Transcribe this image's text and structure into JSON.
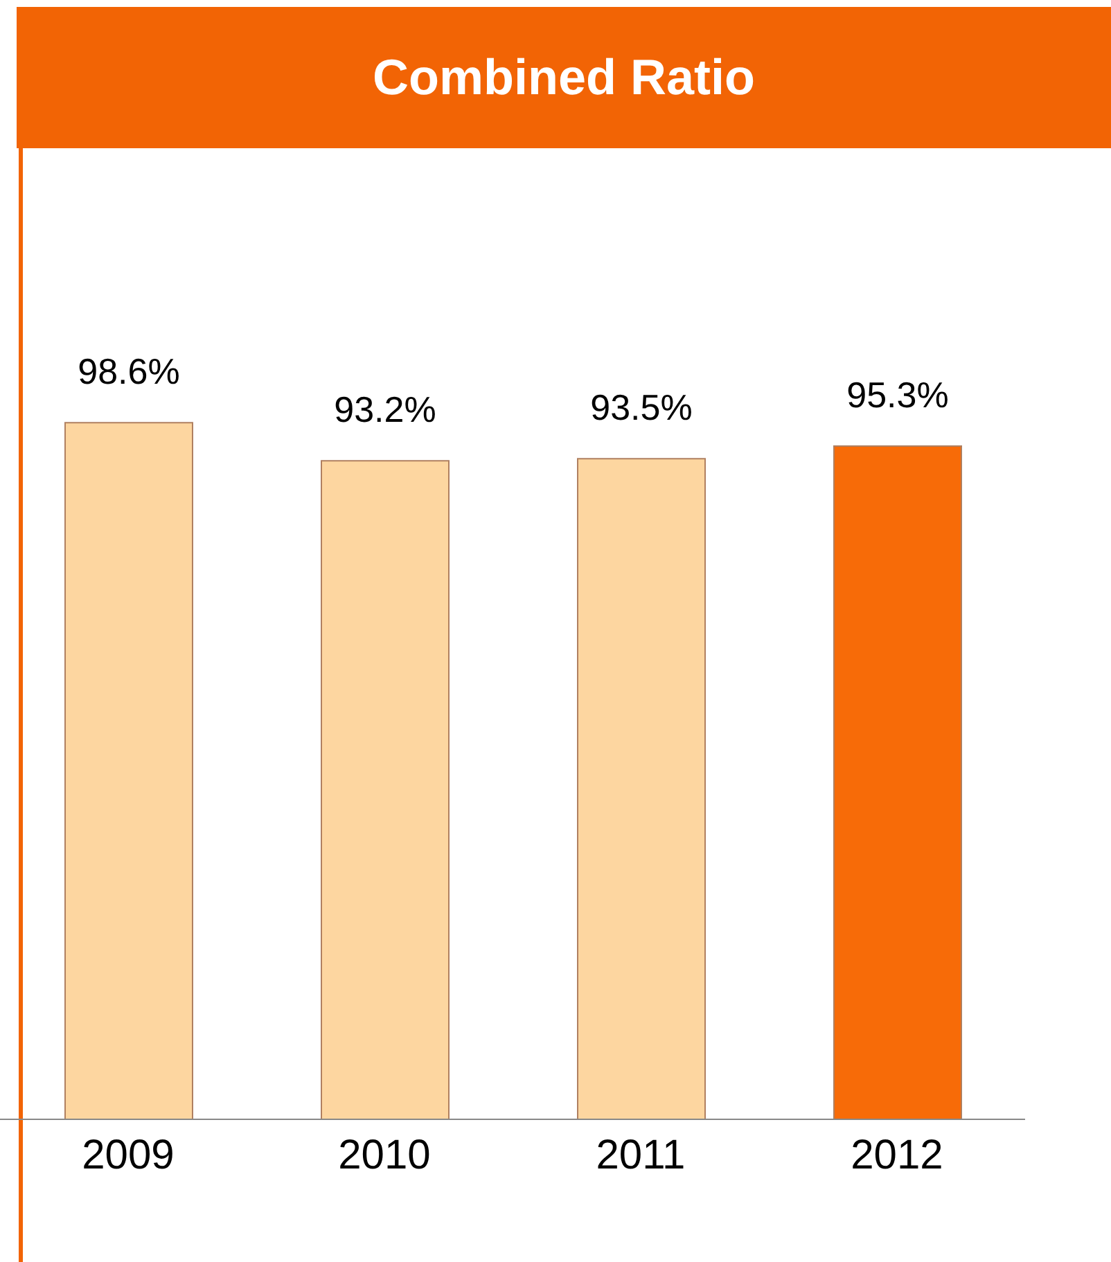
{
  "chart_data": {
    "type": "bar",
    "title": "Combined Ratio",
    "categories": [
      "2009",
      "2010",
      "2011",
      "2012"
    ],
    "values": [
      98.6,
      93.2,
      93.5,
      95.3
    ],
    "colors": [
      "#fdd6a0",
      "#fdd6a0",
      "#fdd6a0",
      "#f76b08"
    ],
    "value_labels": [
      "98.6%",
      "93.2%",
      "93.5%",
      "95.3%"
    ],
    "tick_labels": "x"
  }
}
